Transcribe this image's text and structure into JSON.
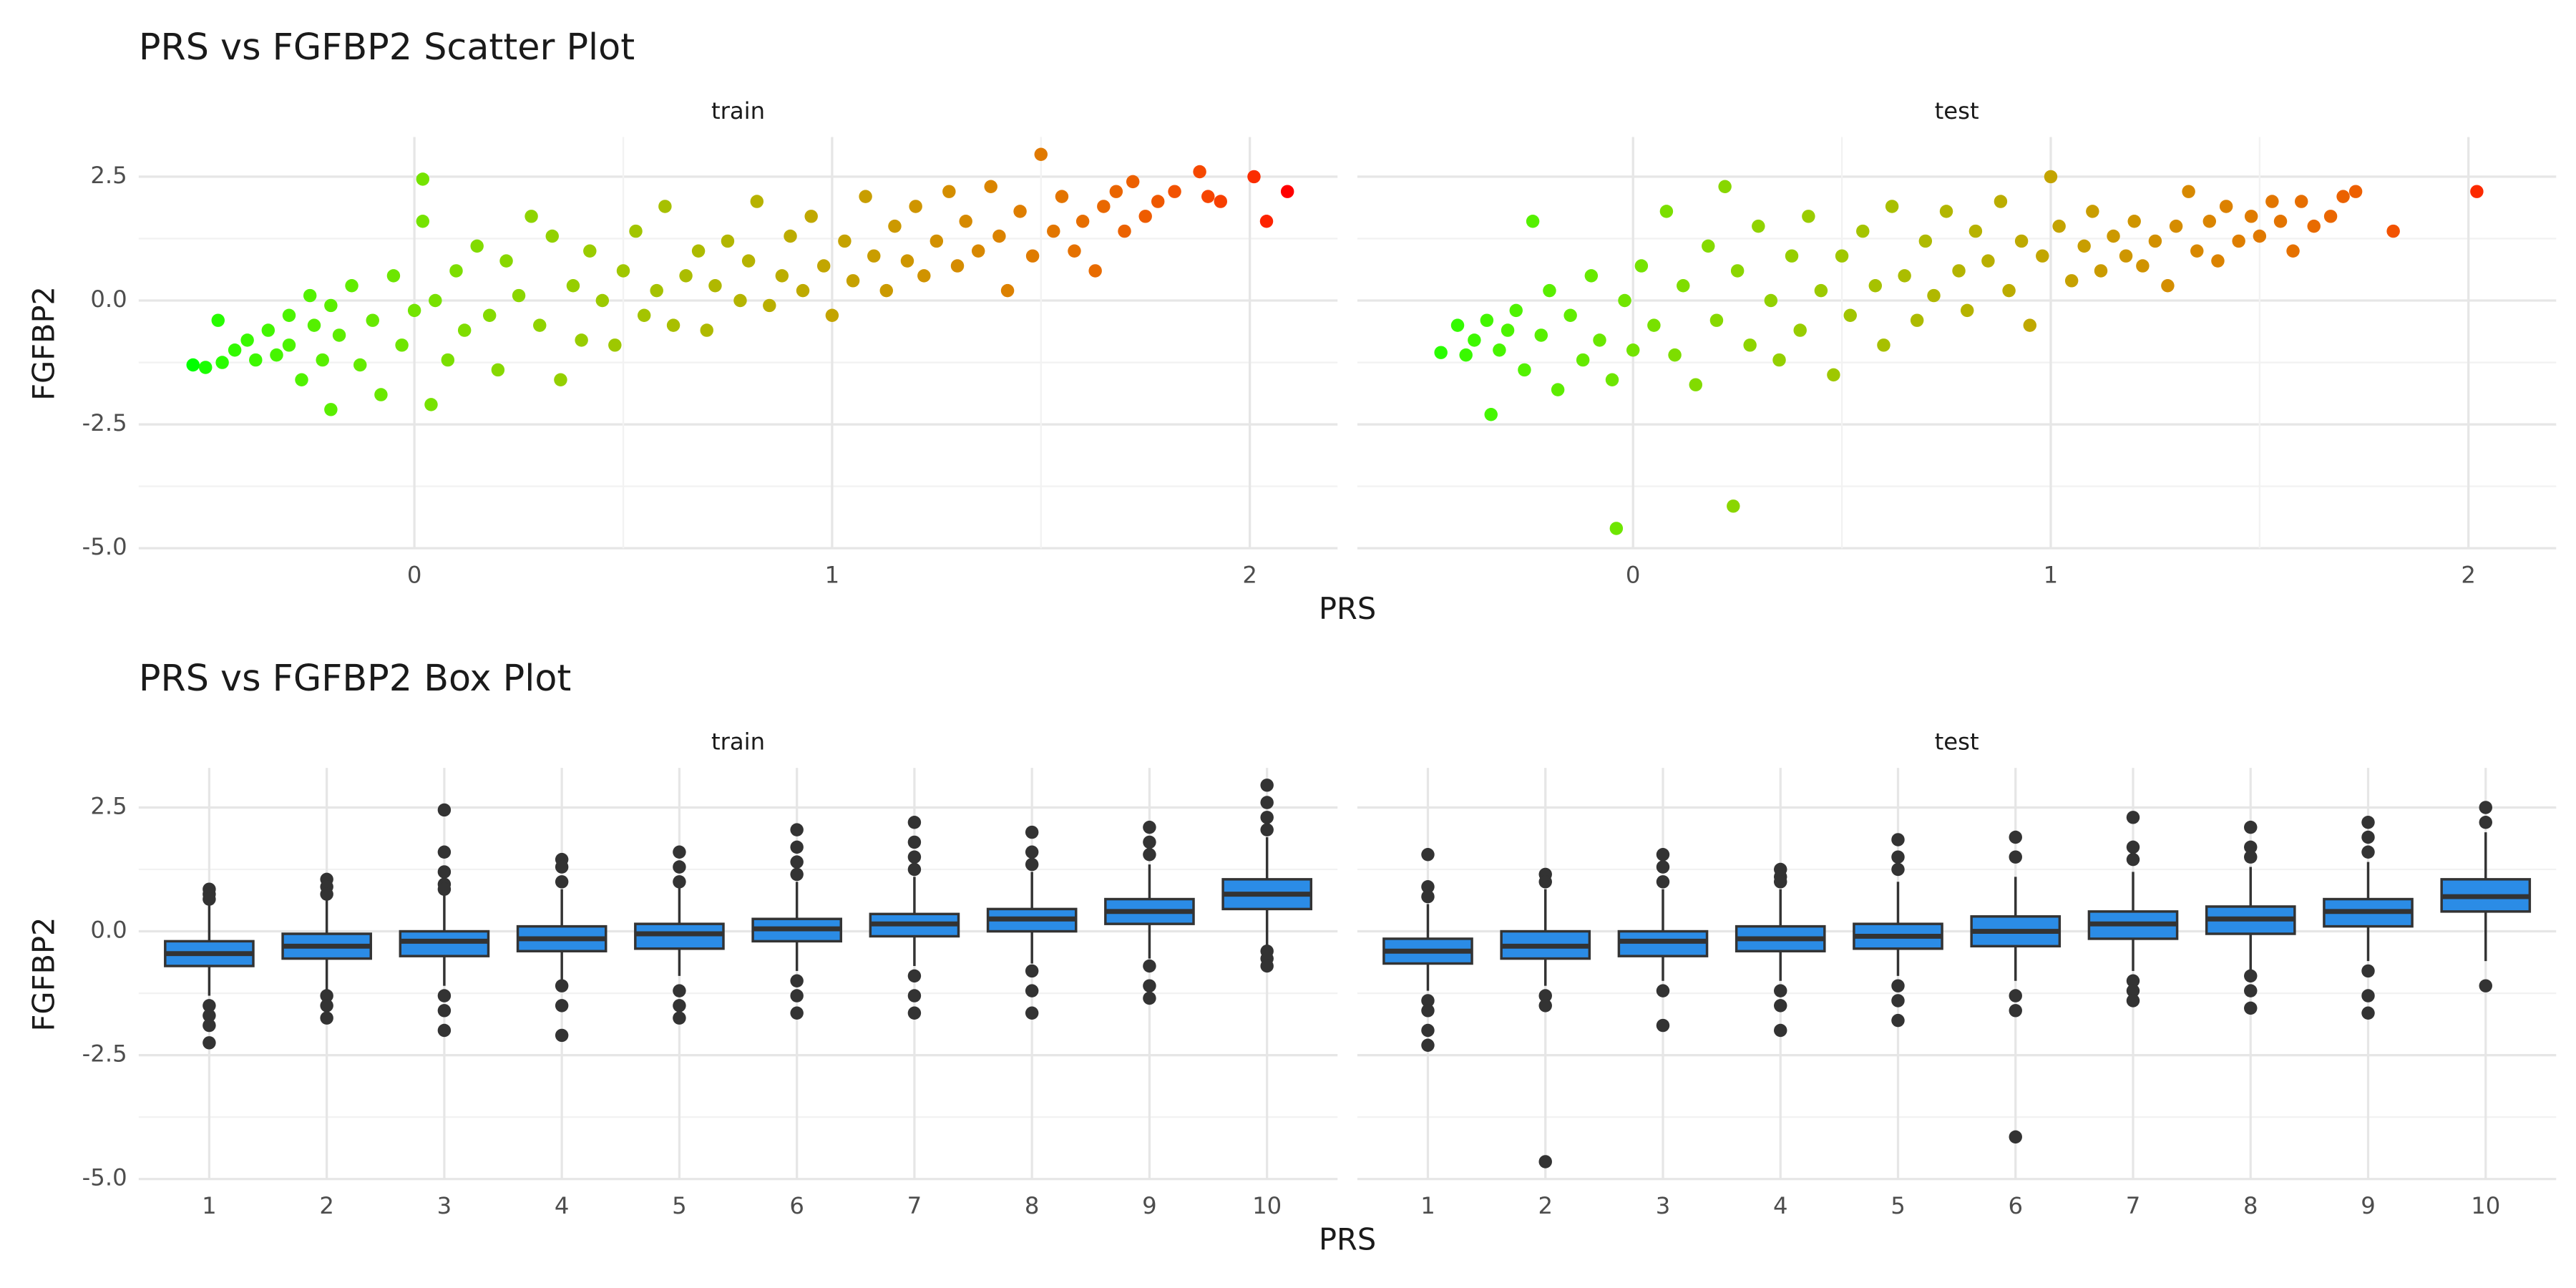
{
  "chart_data": [
    {
      "type": "scatter",
      "title": "PRS vs FGFBP2 Scatter Plot",
      "x_label": "PRS",
      "y_label": "FGFBP2",
      "xlim": [
        -0.66,
        2.21
      ],
      "xticks": [
        0,
        1,
        2
      ],
      "ylim": [
        -5.0,
        3.3
      ],
      "yticks": [
        {
          "value": -5,
          "label": "-5.0"
        },
        {
          "value": -2.5,
          "label": "-2.5"
        },
        {
          "value": 0,
          "label": "0.0"
        },
        {
          "value": 2.5,
          "label": "2.5"
        }
      ],
      "grid": true,
      "color_gradient": [
        "#00ff00",
        "#ff0000"
      ],
      "panels": [
        {
          "label": "train",
          "x": [
            -0.53,
            -0.5,
            -0.46,
            -0.47,
            -0.43,
            -0.4,
            -0.38,
            -0.35,
            -0.33,
            -0.3,
            -0.3,
            -0.27,
            -0.25,
            -0.24,
            -0.22,
            -0.2,
            -0.2,
            -0.18,
            -0.15,
            -0.13,
            -0.1,
            -0.08,
            -0.05,
            -0.03,
            0,
            0.02,
            0.02,
            0.04,
            0.05,
            0.08,
            0.1,
            0.12,
            0.15,
            0.18,
            0.2,
            0.22,
            0.25,
            0.28,
            0.3,
            0.33,
            0.35,
            0.38,
            0.4,
            0.42,
            0.45,
            0.48,
            0.5,
            0.53,
            0.55,
            0.58,
            0.6,
            0.62,
            0.65,
            0.68,
            0.7,
            0.72,
            0.75,
            0.78,
            0.8,
            0.82,
            0.85,
            0.88,
            0.9,
            0.93,
            0.95,
            0.98,
            1.0,
            1.03,
            1.05,
            1.08,
            1.1,
            1.13,
            1.15,
            1.18,
            1.2,
            1.22,
            1.25,
            1.28,
            1.3,
            1.32,
            1.35,
            1.38,
            1.4,
            1.42,
            1.45,
            1.48,
            1.5,
            1.53,
            1.55,
            1.58,
            1.6,
            1.63,
            1.65,
            1.68,
            1.7,
            1.72,
            1.75,
            1.78,
            1.82,
            1.88,
            1.9,
            1.93,
            2.01,
            2.04,
            2.09
          ],
          "y": [
            -1.3,
            -1.35,
            -1.25,
            -0.4,
            -1.0,
            -0.8,
            -1.2,
            -0.6,
            -1.1,
            -0.3,
            -0.9,
            -1.6,
            0.1,
            -0.5,
            -1.2,
            -2.2,
            -0.1,
            -0.7,
            0.3,
            -1.3,
            -0.4,
            -1.9,
            0.5,
            -0.9,
            -0.2,
            2.45,
            1.6,
            -2.1,
            0.0,
            -1.2,
            0.6,
            -0.6,
            1.1,
            -0.3,
            -1.4,
            0.8,
            0.1,
            1.7,
            -0.5,
            1.3,
            -1.6,
            0.3,
            -0.8,
            1.0,
            0.0,
            -0.9,
            0.6,
            1.4,
            -0.3,
            0.2,
            1.9,
            -0.5,
            0.5,
            1.0,
            -0.6,
            0.3,
            1.2,
            0.0,
            0.8,
            2.0,
            -0.1,
            0.5,
            1.3,
            0.2,
            1.7,
            0.7,
            -0.3,
            1.2,
            0.4,
            2.1,
            0.9,
            0.2,
            1.5,
            0.8,
            1.9,
            0.5,
            1.2,
            2.2,
            0.7,
            1.6,
            1.0,
            2.3,
            1.3,
            0.2,
            1.8,
            0.9,
            2.95,
            1.4,
            2.1,
            1.0,
            1.6,
            0.6,
            1.9,
            2.2,
            1.4,
            2.4,
            1.7,
            2.0,
            2.2,
            2.6,
            2.1,
            2.0,
            2.5,
            1.6,
            2.2
          ]
        },
        {
          "label": "test",
          "x": [
            -0.46,
            -0.42,
            -0.4,
            -0.38,
            -0.35,
            -0.34,
            -0.32,
            -0.3,
            -0.28,
            -0.26,
            -0.24,
            -0.22,
            -0.2,
            -0.18,
            -0.15,
            -0.12,
            -0.1,
            -0.08,
            -0.05,
            -0.04,
            -0.02,
            0,
            0.02,
            0.05,
            0.08,
            0.1,
            0.12,
            0.15,
            0.18,
            0.2,
            0.22,
            0.24,
            0.25,
            0.28,
            0.3,
            0.33,
            0.35,
            0.38,
            0.4,
            0.42,
            0.45,
            0.48,
            0.5,
            0.52,
            0.55,
            0.58,
            0.6,
            0.62,
            0.65,
            0.68,
            0.7,
            0.72,
            0.75,
            0.78,
            0.8,
            0.82,
            0.85,
            0.88,
            0.9,
            0.93,
            0.95,
            0.98,
            1.0,
            1.02,
            1.05,
            1.08,
            1.1,
            1.12,
            1.15,
            1.18,
            1.2,
            1.22,
            1.25,
            1.28,
            1.3,
            1.33,
            1.35,
            1.38,
            1.4,
            1.42,
            1.45,
            1.48,
            1.5,
            1.53,
            1.55,
            1.58,
            1.6,
            1.63,
            1.67,
            1.7,
            1.73,
            1.82,
            2.02
          ],
          "y": [
            -1.05,
            -0.5,
            -1.1,
            -0.8,
            -0.4,
            -2.3,
            -1.0,
            -0.6,
            -0.2,
            -1.4,
            1.6,
            -0.7,
            0.2,
            -1.8,
            -0.3,
            -1.2,
            0.5,
            -0.8,
            -1.6,
            -4.6,
            0.0,
            -1.0,
            0.7,
            -0.5,
            1.8,
            -1.1,
            0.3,
            -1.7,
            1.1,
            -0.4,
            2.3,
            -4.15,
            0.6,
            -0.9,
            1.5,
            0.0,
            -1.2,
            0.9,
            -0.6,
            1.7,
            0.2,
            -1.5,
            0.9,
            -0.3,
            1.4,
            0.3,
            -0.9,
            1.9,
            0.5,
            -0.4,
            1.2,
            0.1,
            1.8,
            0.6,
            -0.2,
            1.4,
            0.8,
            2.0,
            0.2,
            1.2,
            -0.5,
            0.9,
            2.5,
            1.5,
            0.4,
            1.1,
            1.8,
            0.6,
            1.3,
            0.9,
            1.6,
            0.7,
            1.2,
            0.3,
            1.5,
            2.2,
            1.0,
            1.6,
            0.8,
            1.9,
            1.2,
            1.7,
            1.3,
            2.0,
            1.6,
            1.0,
            2.0,
            1.5,
            1.7,
            2.1,
            2.2,
            1.4,
            2.2
          ]
        }
      ]
    },
    {
      "type": "box",
      "title": "PRS vs FGFBP2 Box Plot",
      "x_label": "PRS",
      "y_label": "FGFBP2",
      "categories": [
        "1",
        "2",
        "3",
        "4",
        "5",
        "6",
        "7",
        "8",
        "9",
        "10"
      ],
      "ylim": [
        -5.0,
        3.3
      ],
      "yticks": [
        {
          "value": -5,
          "label": "-5.0"
        },
        {
          "value": -2.5,
          "label": "-2.5"
        },
        {
          "value": 0,
          "label": "0.0"
        },
        {
          "value": 2.5,
          "label": "2.5"
        }
      ],
      "grid": true,
      "color": "#2b8ce6",
      "panels": [
        {
          "label": "train",
          "boxes": [
            {
              "whisker_low": -1.3,
              "q1": -0.7,
              "median": -0.45,
              "q3": -0.2,
              "whisker_high": 0.6,
              "outliers": [
                0.85,
                0.75,
                0.65,
                -1.5,
                -1.7,
                -1.9,
                -2.25
              ]
            },
            {
              "whisker_low": -1.2,
              "q1": -0.55,
              "median": -0.3,
              "q3": -0.05,
              "whisker_high": 0.65,
              "outliers": [
                1.05,
                0.9,
                0.75,
                -1.3,
                -1.5,
                -1.75
              ]
            },
            {
              "whisker_low": -1.1,
              "q1": -0.5,
              "median": -0.2,
              "q3": 0.0,
              "whisker_high": 0.75,
              "outliers": [
                2.45,
                1.6,
                1.2,
                0.95,
                0.85,
                -1.3,
                -1.6,
                -2.0
              ]
            },
            {
              "whisker_low": -1.0,
              "q1": -0.4,
              "median": -0.15,
              "q3": 0.1,
              "whisker_high": 0.85,
              "outliers": [
                1.45,
                1.3,
                1.0,
                -1.1,
                -1.5,
                -2.1
              ]
            },
            {
              "whisker_low": -0.9,
              "q1": -0.35,
              "median": -0.05,
              "q3": 0.15,
              "whisker_high": 0.9,
              "outliers": [
                1.6,
                1.3,
                1.0,
                -1.2,
                -1.5,
                -1.75
              ]
            },
            {
              "whisker_low": -0.8,
              "q1": -0.2,
              "median": 0.05,
              "q3": 0.25,
              "whisker_high": 1.0,
              "outliers": [
                2.05,
                1.7,
                1.4,
                1.15,
                -1.0,
                -1.3,
                -1.65
              ]
            },
            {
              "whisker_low": -0.7,
              "q1": -0.1,
              "median": 0.15,
              "q3": 0.35,
              "whisker_high": 1.1,
              "outliers": [
                2.2,
                1.8,
                1.5,
                1.25,
                -0.9,
                -1.3,
                -1.65
              ]
            },
            {
              "whisker_low": -0.65,
              "q1": 0.0,
              "median": 0.25,
              "q3": 0.45,
              "whisker_high": 1.2,
              "outliers": [
                2.0,
                1.6,
                1.35,
                -0.8,
                -1.2,
                -1.65
              ]
            },
            {
              "whisker_low": -0.55,
              "q1": 0.15,
              "median": 0.4,
              "q3": 0.65,
              "whisker_high": 1.35,
              "outliers": [
                2.1,
                1.8,
                1.55,
                -0.7,
                -1.1,
                -1.35
              ]
            },
            {
              "whisker_low": -0.3,
              "q1": 0.45,
              "median": 0.75,
              "q3": 1.05,
              "whisker_high": 1.9,
              "outliers": [
                2.95,
                2.6,
                2.3,
                2.05,
                -0.4,
                -0.55,
                -0.7
              ]
            }
          ]
        },
        {
          "label": "test",
          "boxes": [
            {
              "whisker_low": -1.2,
              "q1": -0.65,
              "median": -0.4,
              "q3": -0.15,
              "whisker_high": 0.55,
              "outliers": [
                1.55,
                0.9,
                0.7,
                -1.4,
                -1.6,
                -2.0,
                -2.3
              ]
            },
            {
              "whisker_low": -1.1,
              "q1": -0.55,
              "median": -0.3,
              "q3": 0.0,
              "whisker_high": 0.85,
              "outliers": [
                1.15,
                1.0,
                -1.3,
                -1.5,
                -4.65
              ]
            },
            {
              "whisker_low": -1.0,
              "q1": -0.5,
              "median": -0.2,
              "q3": 0.0,
              "whisker_high": 0.85,
              "outliers": [
                1.55,
                1.3,
                1.0,
                -1.2,
                -1.9
              ]
            },
            {
              "whisker_low": -1.0,
              "q1": -0.4,
              "median": -0.15,
              "q3": 0.1,
              "whisker_high": 0.85,
              "outliers": [
                1.25,
                1.1,
                1.0,
                -1.2,
                -1.5,
                -2.0
              ]
            },
            {
              "whisker_low": -0.9,
              "q1": -0.35,
              "median": -0.1,
              "q3": 0.15,
              "whisker_high": 1.0,
              "outliers": [
                1.85,
                1.5,
                1.25,
                -1.1,
                -1.4,
                -1.8
              ]
            },
            {
              "whisker_low": -1.0,
              "q1": -0.3,
              "median": 0.0,
              "q3": 0.3,
              "whisker_high": 1.1,
              "outliers": [
                1.9,
                1.5,
                -1.3,
                -1.6,
                -4.15
              ]
            },
            {
              "whisker_low": -0.8,
              "q1": -0.15,
              "median": 0.15,
              "q3": 0.4,
              "whisker_high": 1.2,
              "outliers": [
                2.3,
                1.7,
                1.45,
                -1.0,
                -1.2,
                -1.4
              ]
            },
            {
              "whisker_low": -0.8,
              "q1": -0.05,
              "median": 0.25,
              "q3": 0.5,
              "whisker_high": 1.3,
              "outliers": [
                2.1,
                1.7,
                1.5,
                -0.9,
                -1.2,
                -1.55
              ]
            },
            {
              "whisker_low": -0.6,
              "q1": 0.1,
              "median": 0.4,
              "q3": 0.65,
              "whisker_high": 1.4,
              "outliers": [
                2.2,
                1.9,
                1.6,
                -0.8,
                -1.3,
                -1.65
              ]
            },
            {
              "whisker_low": -0.6,
              "q1": 0.4,
              "median": 0.7,
              "q3": 1.05,
              "whisker_high": 2.0,
              "outliers": [
                2.5,
                2.2,
                -1.1
              ]
            }
          ]
        }
      ]
    }
  ]
}
